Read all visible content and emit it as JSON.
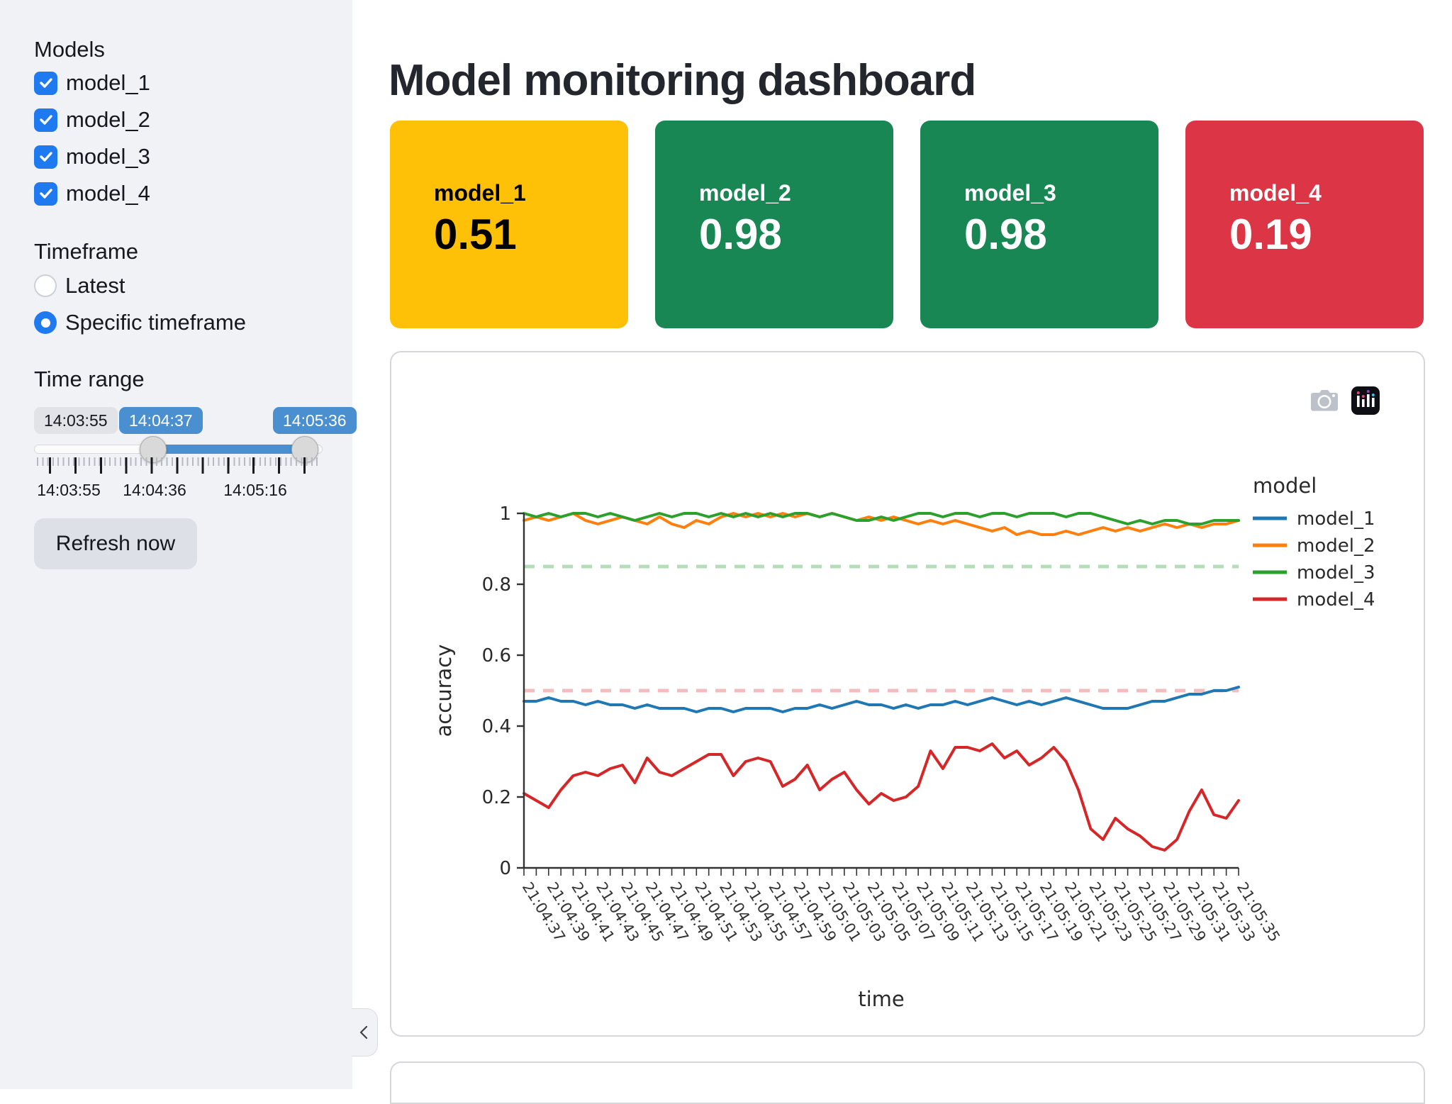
{
  "sidebar": {
    "models_label": "Models",
    "models": [
      {
        "label": "model_1",
        "checked": true
      },
      {
        "label": "model_2",
        "checked": true
      },
      {
        "label": "model_3",
        "checked": true
      },
      {
        "label": "model_4",
        "checked": true
      }
    ],
    "timeframe_label": "Timeframe",
    "timeframe_options": [
      {
        "label": "Latest",
        "selected": false
      },
      {
        "label": "Specific timeframe",
        "selected": true
      }
    ],
    "time_range_label": "Time range",
    "slider": {
      "min_chip": "14:03:55",
      "start_value": "14:04:37",
      "end_value": "14:05:36",
      "axis_labels": [
        "14:03:55",
        "14:04:36",
        "14:05:16"
      ],
      "fill_color": "#4a8fd0"
    },
    "refresh_button_label": "Refresh now",
    "collapse_icon": "chevron-left",
    "background": "#f0f2f6",
    "accent_color": "#1f7af0"
  },
  "header": {
    "title": "Model monitoring dashboard"
  },
  "metric_cards": [
    {
      "label": "model_1",
      "value": "0.51",
      "bg": "#ffc107",
      "fg": "#000000"
    },
    {
      "label": "model_2",
      "value": "0.98",
      "bg": "#198754",
      "fg": "#ffffff"
    },
    {
      "label": "model_3",
      "value": "0.98",
      "bg": "#198754",
      "fg": "#ffffff"
    },
    {
      "label": "model_4",
      "value": "0.19",
      "bg": "#dc3545",
      "fg": "#ffffff"
    }
  ],
  "chart_toolbar": {
    "icons": [
      "camera",
      "plotly-logo"
    ]
  },
  "chart_data": {
    "type": "line",
    "xlabel": "time",
    "ylabel": "accuracy",
    "legend_title": "model",
    "ylim": [
      0,
      1
    ],
    "yticks": [
      0,
      0.2,
      0.4,
      0.6,
      0.8,
      1
    ],
    "ytick_labels": [
      "0",
      "0.2",
      "0.4",
      "0.6",
      "0.8",
      "1"
    ],
    "xtick_every": 2,
    "grid": false,
    "legend_position": "right",
    "x": [
      "21:04:37",
      "21:04:38",
      "21:04:39",
      "21:04:40",
      "21:04:41",
      "21:04:42",
      "21:04:43",
      "21:04:44",
      "21:04:45",
      "21:04:46",
      "21:04:47",
      "21:04:48",
      "21:04:49",
      "21:04:50",
      "21:04:51",
      "21:04:52",
      "21:04:53",
      "21:04:54",
      "21:04:55",
      "21:04:56",
      "21:04:57",
      "21:04:58",
      "21:04:59",
      "21:05:00",
      "21:05:01",
      "21:05:02",
      "21:05:03",
      "21:05:04",
      "21:05:05",
      "21:05:06",
      "21:05:07",
      "21:05:08",
      "21:05:09",
      "21:05:10",
      "21:05:11",
      "21:05:12",
      "21:05:13",
      "21:05:14",
      "21:05:15",
      "21:05:16",
      "21:05:17",
      "21:05:18",
      "21:05:19",
      "21:05:20",
      "21:05:21",
      "21:05:22",
      "21:05:23",
      "21:05:24",
      "21:05:25",
      "21:05:26",
      "21:05:27",
      "21:05:28",
      "21:05:29",
      "21:05:30",
      "21:05:31",
      "21:05:32",
      "21:05:33",
      "21:05:34",
      "21:05:35"
    ],
    "series": [
      {
        "name": "model_1",
        "color": "#1f77b4",
        "values": [
          0.47,
          0.47,
          0.48,
          0.47,
          0.47,
          0.46,
          0.47,
          0.46,
          0.46,
          0.45,
          0.46,
          0.45,
          0.45,
          0.45,
          0.44,
          0.45,
          0.45,
          0.44,
          0.45,
          0.45,
          0.45,
          0.44,
          0.45,
          0.45,
          0.46,
          0.45,
          0.46,
          0.47,
          0.46,
          0.46,
          0.45,
          0.46,
          0.45,
          0.46,
          0.46,
          0.47,
          0.46,
          0.47,
          0.48,
          0.47,
          0.46,
          0.47,
          0.46,
          0.47,
          0.48,
          0.47,
          0.46,
          0.45,
          0.45,
          0.45,
          0.46,
          0.47,
          0.47,
          0.48,
          0.49,
          0.49,
          0.5,
          0.5,
          0.51
        ]
      },
      {
        "name": "model_2",
        "color": "#ff7f0e",
        "values": [
          0.98,
          0.99,
          0.98,
          0.99,
          1.0,
          0.98,
          0.97,
          0.98,
          0.99,
          0.98,
          0.97,
          0.99,
          0.97,
          0.96,
          0.98,
          0.97,
          0.99,
          1.0,
          0.99,
          1.0,
          0.99,
          1.0,
          0.99,
          1.0,
          0.99,
          1.0,
          0.99,
          0.98,
          0.99,
          0.98,
          0.99,
          0.98,
          0.97,
          0.98,
          0.97,
          0.98,
          0.97,
          0.96,
          0.95,
          0.96,
          0.94,
          0.95,
          0.94,
          0.94,
          0.95,
          0.94,
          0.95,
          0.96,
          0.95,
          0.96,
          0.95,
          0.96,
          0.97,
          0.96,
          0.97,
          0.96,
          0.97,
          0.97,
          0.98
        ]
      },
      {
        "name": "model_3",
        "color": "#2ca02c",
        "values": [
          1.0,
          0.99,
          1.0,
          0.99,
          1.0,
          1.0,
          0.99,
          1.0,
          0.99,
          0.98,
          0.99,
          1.0,
          0.99,
          1.0,
          1.0,
          0.99,
          1.0,
          0.99,
          1.0,
          0.99,
          1.0,
          0.99,
          1.0,
          1.0,
          0.99,
          1.0,
          0.99,
          0.98,
          0.98,
          0.99,
          0.98,
          0.99,
          1.0,
          1.0,
          0.99,
          1.0,
          1.0,
          0.99,
          1.0,
          1.0,
          0.99,
          1.0,
          1.0,
          1.0,
          0.99,
          1.0,
          1.0,
          0.99,
          0.98,
          0.97,
          0.98,
          0.97,
          0.98,
          0.98,
          0.97,
          0.97,
          0.98,
          0.98,
          0.98
        ]
      },
      {
        "name": "model_4",
        "color": "#d62728",
        "values": [
          0.21,
          0.19,
          0.17,
          0.22,
          0.26,
          0.27,
          0.26,
          0.28,
          0.29,
          0.24,
          0.31,
          0.27,
          0.26,
          0.28,
          0.3,
          0.32,
          0.32,
          0.26,
          0.3,
          0.31,
          0.3,
          0.23,
          0.25,
          0.29,
          0.22,
          0.25,
          0.27,
          0.22,
          0.18,
          0.21,
          0.19,
          0.2,
          0.23,
          0.33,
          0.28,
          0.34,
          0.34,
          0.33,
          0.35,
          0.31,
          0.33,
          0.29,
          0.31,
          0.34,
          0.3,
          0.22,
          0.11,
          0.08,
          0.14,
          0.11,
          0.09,
          0.06,
          0.05,
          0.08,
          0.16,
          0.22,
          0.15,
          0.14,
          0.19
        ]
      }
    ],
    "reference_lines": [
      {
        "y": 0.85,
        "color": "#b5ddb9",
        "style": "dashed"
      },
      {
        "y": 0.5,
        "color": "#f4bcbe",
        "style": "dashed"
      }
    ]
  }
}
